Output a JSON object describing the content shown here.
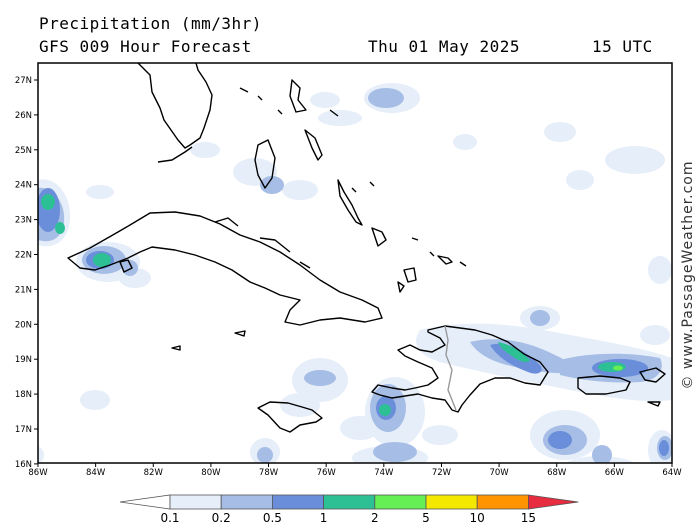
{
  "header": {
    "title": "Precipitation (mm/3hr)",
    "subtitle": "GFS 009 Hour Forecast",
    "date": "Thu 01 May 2025",
    "time": "15 UTC"
  },
  "credit": "© www.PassageWeather.com",
  "map": {
    "lat_ticks": [
      "27N",
      "26N",
      "25N",
      "24N",
      "23N",
      "22N",
      "21N",
      "20N",
      "19N",
      "18N",
      "17N",
      "16N"
    ],
    "lon_ticks": [
      "86W",
      "84W",
      "82W",
      "80W",
      "78W",
      "76W",
      "74W",
      "72W",
      "70W",
      "68W",
      "66W",
      "64W"
    ],
    "land_color": "#000000",
    "border_color": "#999999"
  },
  "legend": {
    "labels": [
      "0.1",
      "0.2",
      "0.5",
      "1",
      "2",
      "5",
      "10",
      "15"
    ],
    "colors": [
      "#ffffff",
      "#e6eef9",
      "#a6bde6",
      "#6a8ed9",
      "#2ec095",
      "#66ee55",
      "#f4e800",
      "#ff9300",
      "#e62c3e"
    ]
  },
  "precip_colors": {
    "light": "#e6eef9",
    "moderate": "#a6bde6",
    "heavy": "#6a8ed9",
    "very_heavy": "#2ec095",
    "intense": "#66ee55"
  }
}
